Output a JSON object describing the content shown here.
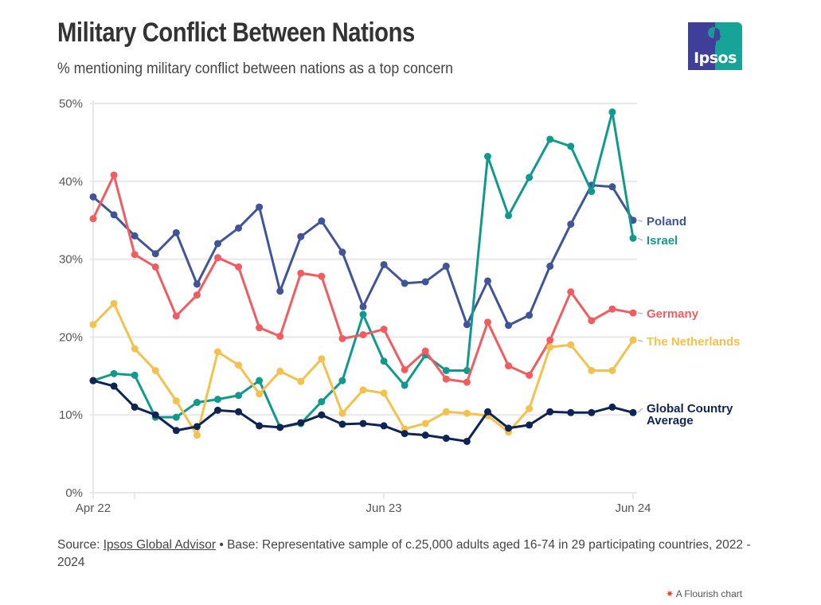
{
  "header": {
    "title": "Military Conflict Between Nations",
    "subtitle": "% mentioning military conflict between nations as a top concern",
    "logo_text": "Ipsos"
  },
  "colors": {
    "Poland": "#3f5597",
    "Israel": "#11998e",
    "Germany": "#f25c60",
    "The Netherlands": "#f2c14e",
    "Global Country Average": "#0d2455",
    "logo_left": "#3f3f99",
    "logo_right": "#17a398",
    "grid": "#e8e8e8"
  },
  "chart_data": {
    "type": "line",
    "title": "Military Conflict Between Nations",
    "subtitle": "% mentioning military conflict between nations as a top concern",
    "xlabel": "",
    "ylabel": "",
    "ylim": [
      0,
      50
    ],
    "yticks": [
      0,
      10,
      20,
      30,
      40,
      50
    ],
    "ytick_labels": [
      "0%",
      "10%",
      "20%",
      "30%",
      "40%",
      "50%"
    ],
    "x_count": 27,
    "xtick_labels": [
      {
        "index": 0,
        "label": "Apr 22"
      },
      {
        "index": 14,
        "label": "Jun 23"
      },
      {
        "index": 26,
        "label": "Jun 24"
      }
    ],
    "minor_xtick_indices": [
      2
    ],
    "grid": true,
    "legend": "right (end-of-line labels)",
    "series": [
      {
        "name": "Poland",
        "label": "Poland",
        "values": [
          38.0,
          35.7,
          33.0,
          30.7,
          33.4,
          26.8,
          32.0,
          34.0,
          36.7,
          25.9,
          32.9,
          34.9,
          30.9,
          23.9,
          29.3,
          26.9,
          27.1,
          29.1,
          21.6,
          27.2,
          21.5,
          22.8,
          29.1,
          34.5,
          39.5,
          39.3,
          35.0
        ]
      },
      {
        "name": "Israel",
        "label": "Israel",
        "values": [
          14.4,
          15.3,
          15.1,
          9.7,
          9.7,
          11.6,
          12.0,
          12.5,
          14.4,
          8.4,
          8.9,
          11.7,
          14.4,
          22.9,
          16.9,
          13.8,
          17.7,
          15.7,
          15.7,
          43.2,
          35.6,
          40.5,
          45.4,
          44.5,
          38.7,
          48.9,
          32.7
        ]
      },
      {
        "name": "Germany",
        "label": "Germany",
        "values": [
          35.2,
          40.8,
          30.6,
          29.0,
          22.7,
          25.4,
          30.2,
          29.0,
          21.2,
          20.1,
          28.2,
          27.8,
          19.8,
          20.3,
          21.0,
          15.8,
          18.2,
          14.6,
          14.2,
          21.9,
          16.3,
          15.1,
          19.6,
          25.8,
          22.1,
          23.6,
          23.1
        ]
      },
      {
        "name": "The Netherlands",
        "label": "The Netherlands",
        "values": [
          21.6,
          24.3,
          18.5,
          15.7,
          11.8,
          7.4,
          18.1,
          16.4,
          12.7,
          15.6,
          14.3,
          17.2,
          10.2,
          13.2,
          12.8,
          8.2,
          8.9,
          10.4,
          10.2,
          9.9,
          7.8,
          10.8,
          18.7,
          19.0,
          15.7,
          15.7,
          19.6
        ]
      },
      {
        "name": "Global Country Average",
        "label": "Global Country Average",
        "label_lines": [
          "Global Country",
          "Average"
        ],
        "values": [
          14.4,
          13.7,
          11.0,
          10.0,
          8.0,
          8.5,
          10.6,
          10.4,
          8.6,
          8.4,
          9.0,
          10.0,
          8.8,
          8.9,
          8.6,
          7.6,
          7.4,
          7.0,
          6.6,
          10.4,
          8.3,
          8.7,
          10.4,
          10.3,
          10.3,
          11.0,
          10.3
        ]
      }
    ]
  },
  "footer": {
    "source_prefix": "Source: ",
    "source_link": "Ipsos Global Advisor",
    "source_rest": " • Base: Representative sample of c.25,000 adults aged 16-74 in 29 participating countries, 2022 - 2024",
    "flourish_star": "✷",
    "flourish_label": "A Flourish chart"
  }
}
